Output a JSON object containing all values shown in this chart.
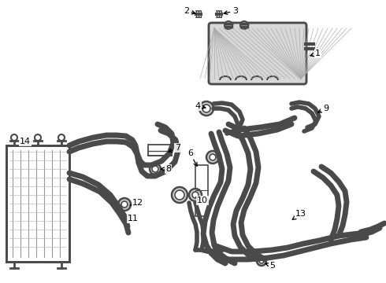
{
  "bg_color": "#ffffff",
  "line_color": "#4a4a4a",
  "label_color": "#000000",
  "fig_width": 4.9,
  "fig_height": 3.6,
  "dpi": 100,
  "lw_tube": 3.5,
  "lw_thin": 1.5
}
